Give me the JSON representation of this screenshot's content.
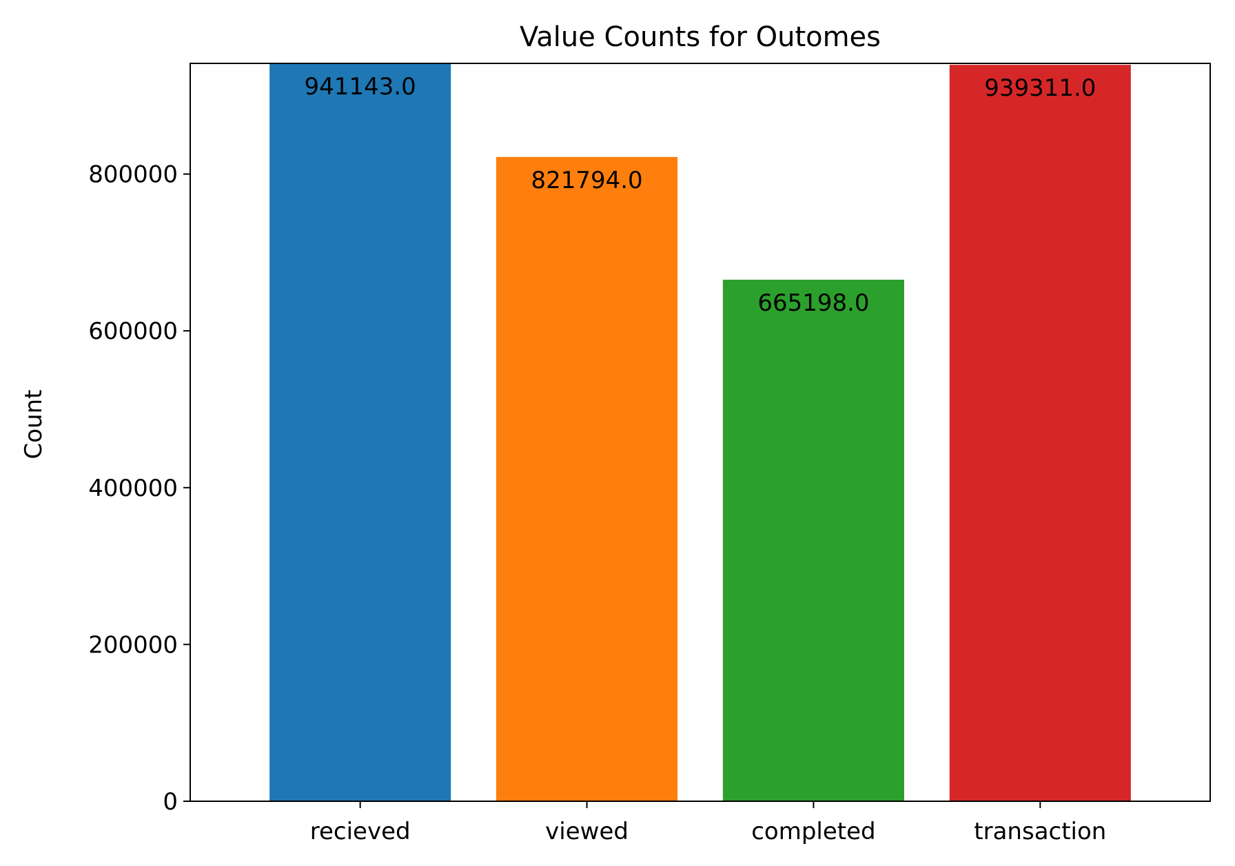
{
  "chart_data": {
    "type": "bar",
    "title": "Value Counts for Outomes",
    "xlabel": "",
    "ylabel": "Count",
    "categories": [
      "recieved",
      "viewed",
      "completed",
      "transaction"
    ],
    "values": [
      941143.0,
      821794.0,
      665198.0,
      939311.0
    ],
    "value_labels": [
      "941143.0",
      "821794.0",
      "665198.0",
      "939311.0"
    ],
    "colors": [
      "#1f77b4",
      "#ff7f0e",
      "#2ca02c",
      "#d62728"
    ],
    "ylim": [
      0,
      941143
    ],
    "yticks": [
      0,
      200000,
      400000,
      600000,
      800000
    ],
    "ytick_labels": [
      "0",
      "200000",
      "400000",
      "600000",
      "800000"
    ],
    "grid": false,
    "legend": "none"
  }
}
